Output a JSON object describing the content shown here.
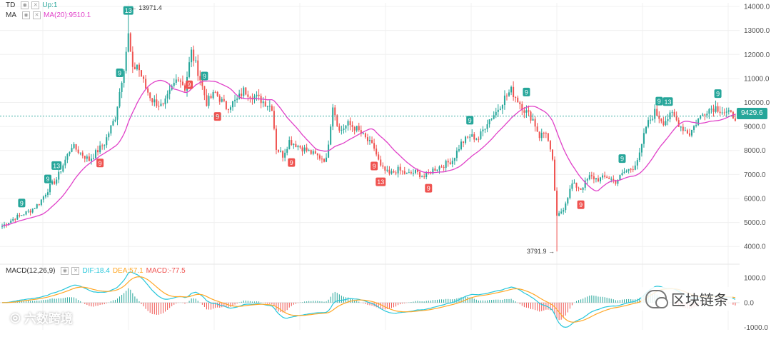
{
  "legend": {
    "td_name": "TD",
    "td_value": "Up:1",
    "ma_name": "MA",
    "ma_value": "MA(20):9510.1",
    "macd_name": "MACD(12,26,9)",
    "dif_value": "DIF:18.4",
    "dea_value": "DEA:57.1",
    "macd_value": "MACD:-77.5"
  },
  "watermarks": {
    "left": "六数跨境",
    "right": "区块链条"
  },
  "colors": {
    "up": "#26a69a",
    "down": "#ef5350",
    "ma": "#e040c8",
    "dif": "#26c6da",
    "dea": "#ffa726",
    "grid": "#f0f0f0",
    "axis_text": "#555555"
  },
  "price_axis": {
    "ticks": [
      "14000.0",
      "13000.0",
      "12000.0",
      "11000.0",
      "10000.0",
      "9000.0",
      "8000.0",
      "7000.0",
      "6000.0",
      "5000.0",
      "4000.0"
    ]
  },
  "macd_axis": {
    "ticks": [
      "1000.0",
      "0.0",
      "-1000.0"
    ]
  },
  "last_price_label": "9429.6",
  "high_label": "← 13971.4",
  "low_label": "3791.9 →",
  "chart_data": [
    {
      "type": "candlestick",
      "ylim": [
        3500,
        14150
      ],
      "high": 13971.4,
      "low": 3791.9,
      "last": 9429.6,
      "ma_period": 20,
      "ma_last": 9510.1,
      "close_path": [
        [
          0,
          4850
        ],
        [
          6,
          5200
        ],
        [
          13,
          5500
        ],
        [
          17,
          5800
        ],
        [
          22,
          6500
        ],
        [
          25,
          6800
        ],
        [
          28,
          7400
        ],
        [
          32,
          8200
        ],
        [
          40,
          7600
        ],
        [
          47,
          8300
        ],
        [
          52,
          9400
        ],
        [
          56,
          11500
        ],
        [
          58,
          12800
        ],
        [
          60,
          11300
        ],
        [
          62,
          11600
        ],
        [
          66,
          10600
        ],
        [
          69,
          10100
        ],
        [
          74,
          9800
        ],
        [
          78,
          10600
        ],
        [
          81,
          11100
        ],
        [
          84,
          10600
        ],
        [
          87,
          12100
        ],
        [
          90,
          11300
        ],
        [
          94,
          10000
        ],
        [
          98,
          10400
        ],
        [
          103,
          9800
        ],
        [
          108,
          10100
        ],
        [
          111,
          10500
        ],
        [
          115,
          10300
        ],
        [
          119,
          10100
        ],
        [
          124,
          9800
        ],
        [
          126,
          8100
        ],
        [
          129,
          7800
        ],
        [
          132,
          8400
        ],
        [
          136,
          8200
        ],
        [
          140,
          8000
        ],
        [
          144,
          7800
        ],
        [
          149,
          7600
        ],
        [
          152,
          9900
        ],
        [
          155,
          8800
        ],
        [
          159,
          9100
        ],
        [
          163,
          8900
        ],
        [
          167,
          8500
        ],
        [
          171,
          8100
        ],
        [
          174,
          7300
        ],
        [
          178,
          7000
        ],
        [
          182,
          7200
        ],
        [
          186,
          7000
        ],
        [
          190,
          7100
        ],
        [
          194,
          6900
        ],
        [
          198,
          7200
        ],
        [
          203,
          7400
        ],
        [
          207,
          7600
        ],
        [
          211,
          8300
        ],
        [
          215,
          8600
        ],
        [
          219,
          8500
        ],
        [
          223,
          9200
        ],
        [
          227,
          9600
        ],
        [
          231,
          10200
        ],
        [
          234,
          10500
        ],
        [
          237,
          10100
        ],
        [
          240,
          9700
        ],
        [
          244,
          9300
        ],
        [
          247,
          8600
        ],
        [
          250,
          8800
        ],
        [
          253,
          7500
        ],
        [
          255,
          5200
        ],
        [
          258,
          5600
        ],
        [
          262,
          6600
        ],
        [
          266,
          6400
        ],
        [
          270,
          6900
        ],
        [
          274,
          6800
        ],
        [
          278,
          6900
        ],
        [
          282,
          6700
        ],
        [
          286,
          7100
        ],
        [
          290,
          7300
        ],
        [
          293,
          7800
        ],
        [
          296,
          9000
        ],
        [
          300,
          9600
        ],
        [
          304,
          9200
        ],
        [
          308,
          9500
        ],
        [
          312,
          9000
        ],
        [
          316,
          8700
        ],
        [
          320,
          9300
        ],
        [
          324,
          9700
        ],
        [
          328,
          9800
        ],
        [
          332,
          9600
        ],
        [
          337,
          9400
        ]
      ],
      "td_marks": [
        {
          "i": 9,
          "label": "9",
          "dir": "up"
        },
        {
          "i": 21,
          "label": "9",
          "dir": "up"
        },
        {
          "i": 25,
          "label": "13",
          "dir": "up"
        },
        {
          "i": 45,
          "label": "9",
          "dir": "down"
        },
        {
          "i": 54,
          "label": "9",
          "dir": "up"
        },
        {
          "i": 58,
          "label": "13",
          "dir": "up"
        },
        {
          "i": 86,
          "label": "9",
          "dir": "down"
        },
        {
          "i": 93,
          "label": "9",
          "dir": "up"
        },
        {
          "i": 99,
          "label": "9",
          "dir": "down"
        },
        {
          "i": 133,
          "label": "9",
          "dir": "down"
        },
        {
          "i": 171,
          "label": "9",
          "dir": "down"
        },
        {
          "i": 174,
          "label": "13",
          "dir": "down"
        },
        {
          "i": 196,
          "label": "9",
          "dir": "down"
        },
        {
          "i": 215,
          "label": "9",
          "dir": "up"
        },
        {
          "i": 241,
          "label": "9",
          "dir": "up"
        },
        {
          "i": 266,
          "label": "9",
          "dir": "down"
        },
        {
          "i": 285,
          "label": "9",
          "dir": "up"
        },
        {
          "i": 302,
          "label": "9",
          "dir": "up"
        },
        {
          "i": 306,
          "label": "13",
          "dir": "up"
        },
        {
          "i": 329,
          "label": "9",
          "dir": "up"
        }
      ]
    },
    {
      "type": "macd",
      "fast": 12,
      "slow": 26,
      "signal": 9,
      "dif_last": 18.4,
      "dea_last": 57.1,
      "macd_last": -77.5,
      "ylim": [
        -1100,
        1150
      ]
    }
  ]
}
